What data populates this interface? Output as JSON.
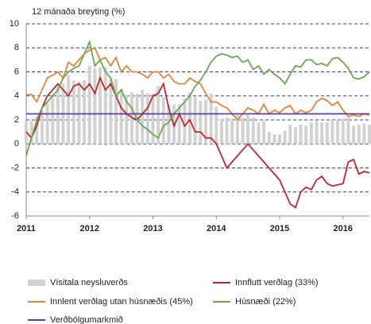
{
  "chart_data": {
    "type": "line",
    "title": "12 mánaða breyting (%)",
    "categories": [
      "2011",
      null,
      null,
      null,
      null,
      null,
      null,
      null,
      null,
      null,
      null,
      null,
      "2012",
      null,
      null,
      null,
      null,
      null,
      null,
      null,
      null,
      null,
      null,
      null,
      "2013",
      null,
      null,
      null,
      null,
      null,
      null,
      null,
      null,
      null,
      null,
      null,
      "2014",
      null,
      null,
      null,
      null,
      null,
      null,
      null,
      null,
      null,
      null,
      null,
      "2015",
      null,
      null,
      null,
      null,
      null,
      null,
      null,
      null,
      null,
      null,
      null,
      "2016",
      null,
      null,
      null,
      null,
      null
    ],
    "ylim": [
      -6,
      10
    ],
    "yticks": [
      -6,
      -4,
      -2,
      0,
      2,
      4,
      6,
      8,
      10
    ],
    "grid": true,
    "series": [
      {
        "name": "Vísitala neysluverðs",
        "type": "bar",
        "color": "#d2d2d2",
        "values": [
          1.8,
          1.9,
          2.3,
          2.8,
          3.4,
          4.2,
          5.0,
          5.0,
          5.7,
          5.3,
          5.2,
          5.3,
          6.5,
          6.3,
          6.4,
          6.4,
          5.4,
          5.4,
          4.6,
          4.1,
          4.3,
          4.2,
          4.5,
          4.2,
          4.2,
          4.8,
          3.9,
          3.3,
          3.3,
          3.3,
          3.8,
          4.3,
          3.9,
          3.6,
          3.7,
          4.2,
          3.1,
          2.1,
          2.2,
          2.0,
          2.4,
          2.2,
          2.4,
          2.2,
          1.8,
          1.9,
          1.0,
          0.8,
          0.8,
          1.1,
          1.6,
          1.4,
          1.6,
          1.5,
          1.8,
          1.9,
          1.8,
          1.8,
          2.0,
          2.0,
          2.1,
          2.2,
          1.5,
          1.6,
          1.7,
          1.6
        ]
      },
      {
        "name": "Innflutt verðlag (33%)",
        "type": "line",
        "color": "#c0272d",
        "values": [
          1.0,
          0.5,
          1.5,
          3.0,
          4.0,
          4.5,
          5.0,
          4.5,
          4.0,
          4.8,
          5.0,
          4.5,
          5.0,
          4.2,
          5.5,
          4.5,
          5.0,
          4.0,
          3.0,
          2.5,
          2.2,
          2.0,
          2.5,
          3.0,
          4.0,
          4.2,
          5.0,
          3.0,
          1.5,
          2.5,
          1.5,
          2.0,
          1.0,
          1.0,
          0.5,
          0.5,
          0.0,
          -1.0,
          -2.0,
          -1.5,
          -1.0,
          -0.5,
          0.0,
          -0.5,
          -1.0,
          -1.5,
          -2.0,
          -2.5,
          -3.0,
          -4.0,
          -5.0,
          -5.3,
          -4.0,
          -3.6,
          -3.8,
          -3.0,
          -2.7,
          -3.3,
          -3.5,
          -3.4,
          -3.3,
          -1.5,
          -1.3,
          -2.5,
          -2.3,
          -2.4
        ]
      },
      {
        "name": "Innlent verðlag utan húsnæðis (45%)",
        "type": "line",
        "color": "#e8833a",
        "values": [
          4.1,
          4.1,
          3.5,
          4.5,
          5.5,
          5.7,
          6.0,
          5.5,
          6.8,
          6.5,
          7.0,
          7.5,
          7.8,
          8.0,
          7.0,
          7.2,
          6.5,
          7.2,
          6.0,
          6.5,
          6.0,
          6.0,
          5.8,
          5.5,
          6.0,
          6.0,
          5.5,
          5.8,
          5.2,
          5.0,
          5.0,
          5.5,
          5.2,
          5.0,
          4.2,
          3.5,
          3.5,
          3.2,
          3.0,
          2.5,
          2.0,
          2.5,
          3.0,
          2.8,
          2.5,
          3.3,
          2.5,
          2.8,
          2.6,
          3.0,
          3.2,
          2.5,
          2.8,
          2.6,
          2.8,
          3.5,
          3.8,
          3.6,
          3.2,
          3.5,
          2.8,
          2.3,
          2.4,
          2.3,
          2.5,
          2.4
        ]
      },
      {
        "name": "Húsnæði (22%)",
        "type": "line",
        "color": "#6aa84f",
        "values": [
          -1.0,
          0.5,
          2.0,
          3.0,
          3.5,
          4.0,
          4.5,
          5.5,
          6.0,
          6.3,
          6.5,
          7.5,
          8.5,
          6.5,
          7.0,
          6.0,
          5.5,
          4.0,
          4.5,
          3.5,
          3.0,
          2.0,
          1.5,
          1.2,
          0.8,
          0.5,
          1.5,
          1.8,
          2.5,
          3.0,
          3.5,
          4.0,
          4.8,
          5.3,
          6.0,
          6.8,
          7.3,
          7.5,
          7.4,
          7.2,
          7.3,
          6.8,
          7.0,
          6.2,
          6.5,
          5.8,
          6.2,
          5.8,
          5.5,
          5.0,
          5.8,
          6.5,
          6.4,
          7.0,
          7.0,
          6.6,
          6.7,
          6.5,
          7.1,
          7.2,
          6.8,
          6.3,
          5.5,
          5.4,
          5.6,
          6.0
        ]
      },
      {
        "name": "Verðbólgumarkmið",
        "type": "line",
        "color": "#5b3fa0",
        "values": [
          2.5,
          2.5,
          2.5,
          2.5,
          2.5,
          2.5,
          2.5,
          2.5,
          2.5,
          2.5,
          2.5,
          2.5,
          2.5,
          2.5,
          2.5,
          2.5,
          2.5,
          2.5,
          2.5,
          2.5,
          2.5,
          2.5,
          2.5,
          2.5,
          2.5,
          2.5,
          2.5,
          2.5,
          2.5,
          2.5,
          2.5,
          2.5,
          2.5,
          2.5,
          2.5,
          2.5,
          2.5,
          2.5,
          2.5,
          2.5,
          2.5,
          2.5,
          2.5,
          2.5,
          2.5,
          2.5,
          2.5,
          2.5,
          2.5,
          2.5,
          2.5,
          2.5,
          2.5,
          2.5,
          2.5,
          2.5,
          2.5,
          2.5,
          2.5,
          2.5,
          2.5,
          2.5,
          2.5,
          2.5,
          2.5,
          2.5
        ]
      }
    ]
  }
}
